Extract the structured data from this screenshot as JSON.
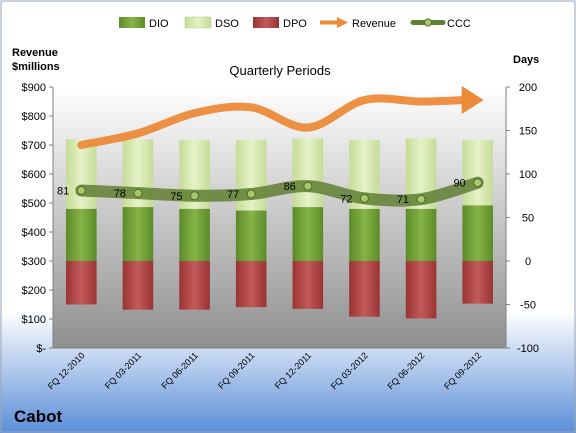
{
  "chart_data": {
    "type": "bar",
    "title": "Quarterly Periods",
    "company": "Cabot",
    "y_left_label": [
      "Revenue",
      "$millions"
    ],
    "y_right_label": "Days",
    "ylim_left": [
      0,
      900
    ],
    "ylim_right": [
      -100,
      200
    ],
    "y_left_ticks": [
      "$-",
      "$100",
      "$200",
      "$300",
      "$400",
      "$500",
      "$600",
      "$700",
      "$800",
      "$900"
    ],
    "y_right_ticks": [
      "-100",
      "-50",
      "0",
      "50",
      "100",
      "150",
      "200"
    ],
    "categories": [
      "FQ 12-2010",
      "FQ 03-2011",
      "FQ 06-2011",
      "FQ 09-2011",
      "FQ 12-2011",
      "FQ 03-2012",
      "FQ 06-2012",
      "FQ 09-2012"
    ],
    "series": [
      {
        "name": "DIO",
        "type": "bar",
        "axis": "right",
        "values": [
          60,
          62,
          60,
          58,
          62,
          60,
          60,
          64
        ]
      },
      {
        "name": "DSO",
        "type": "bar",
        "axis": "right",
        "values": [
          80,
          78,
          79,
          81,
          79,
          79,
          81,
          75
        ]
      },
      {
        "name": "DPO",
        "type": "bar",
        "axis": "right",
        "values": [
          -50,
          -56,
          -56,
          -53,
          -55,
          -64,
          -66,
          -49
        ]
      },
      {
        "name": "Revenue",
        "type": "line",
        "axis": "left",
        "values": [
          700,
          740,
          810,
          830,
          760,
          855,
          850,
          855
        ]
      },
      {
        "name": "CCC",
        "type": "line",
        "axis": "right",
        "values": [
          81,
          78,
          75,
          77,
          86,
          72,
          71,
          90
        ]
      }
    ],
    "data_labels": [
      "81",
      "78",
      "75",
      "77",
      "86",
      "72",
      "71",
      "90"
    ],
    "legend_position": "top",
    "grid": false,
    "colors": {
      "DIO": "#77a33a",
      "DSO": "#d7e8b0",
      "DPO": "#b54747",
      "Revenue": "#ec8a3a",
      "CCC": "#5f7f33",
      "plot_top": "#ffffff",
      "plot_bottom": "#8f8f8f",
      "page_bottom": "#5b8ed8"
    }
  }
}
